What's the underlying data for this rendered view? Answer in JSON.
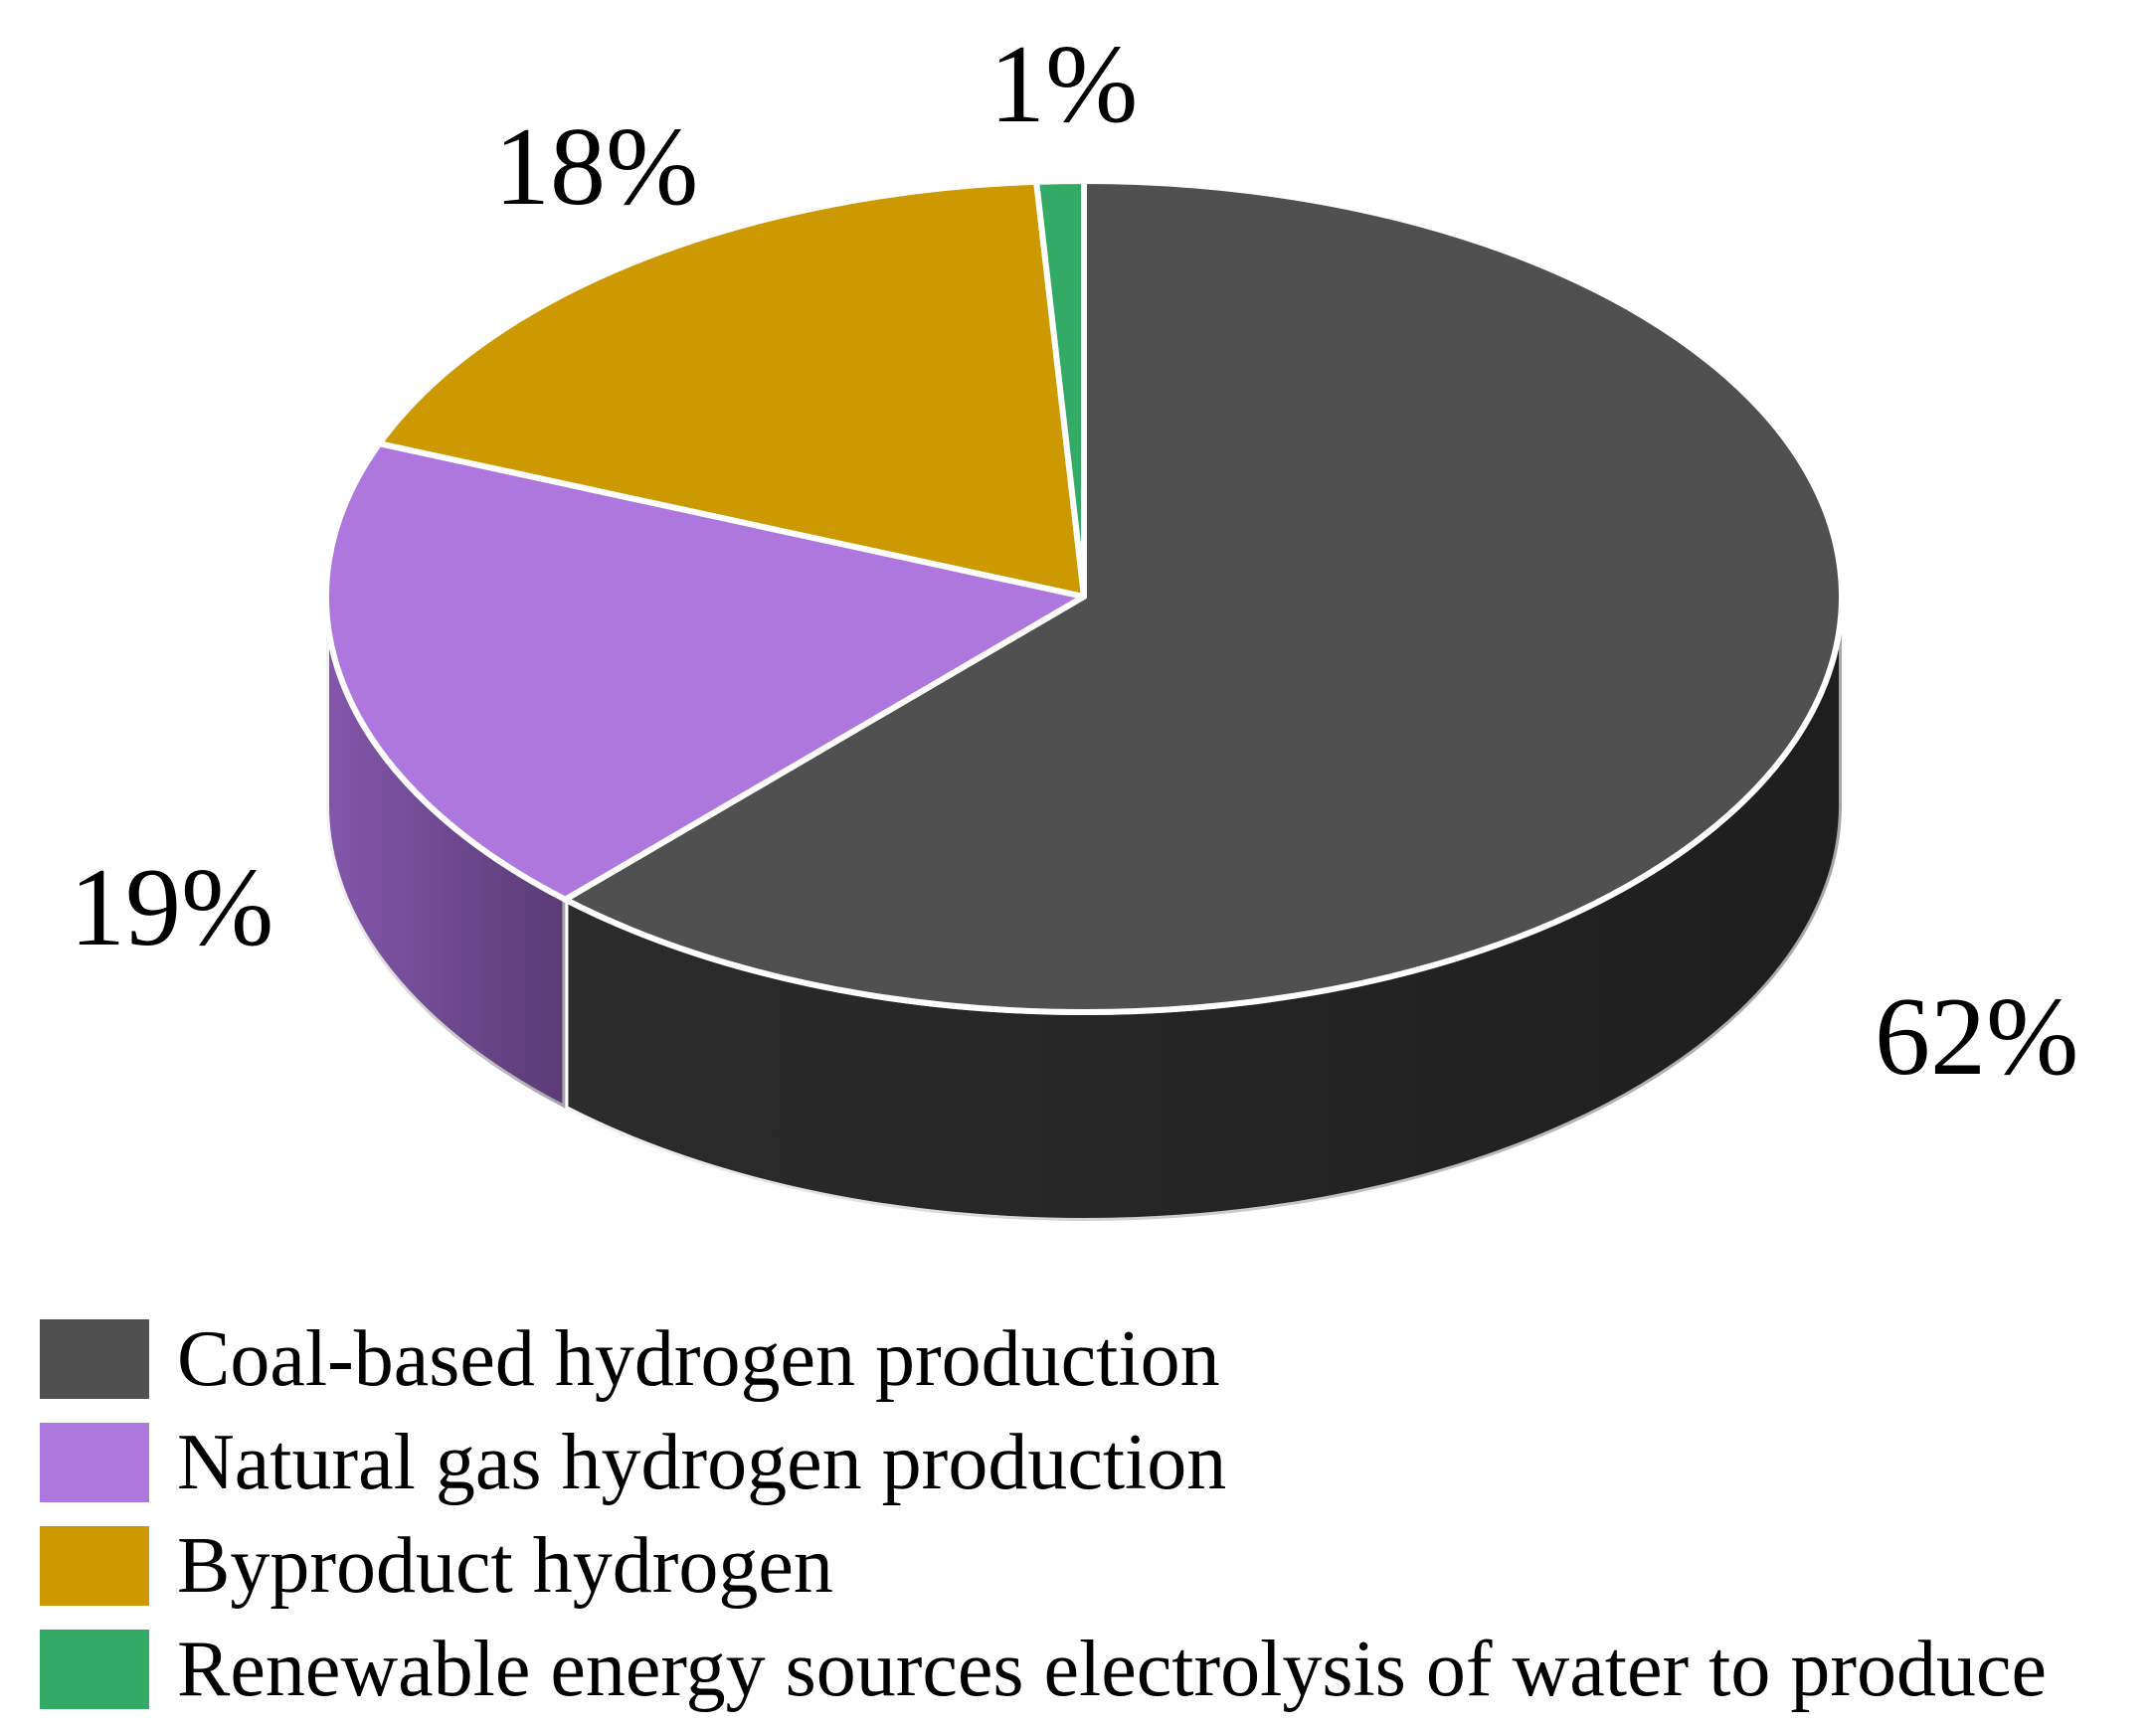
{
  "chart_data": {
    "type": "pie",
    "style": "3d",
    "categories": [
      "Coal-based hydrogen production",
      "Natural gas hydrogen production",
      "Byproduct hydrogen",
      "Renewable energy sources electrolysis of water to produce"
    ],
    "values": [
      62,
      19,
      18,
      1
    ],
    "labels": [
      "62%",
      "19%",
      "18%",
      "1%"
    ],
    "colors": [
      "#505050",
      "#ae77de",
      "#cc9900",
      "#33aa66"
    ],
    "side_colors": [
      "#2e2e2e",
      "#8a5bb4",
      "#a37a00",
      "#22884f"
    ],
    "legend_position": "bottom",
    "title": ""
  }
}
